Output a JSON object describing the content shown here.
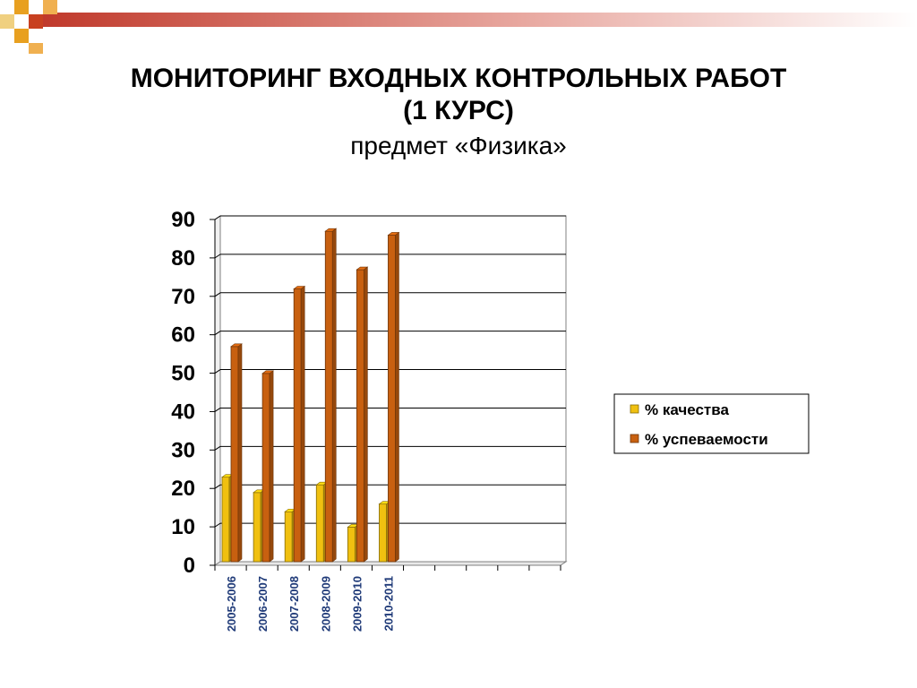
{
  "title": {
    "line1": "МОНИТОРИНГ ВХОДНЫХ КОНТРОЛЬНЫХ РАБОТ",
    "line2": "(1 КУРС)",
    "subtitle": "предмет «Физика»"
  },
  "colors": {
    "header_gradient_start": "#c0392b",
    "header_square_orange": "#e8a020",
    "header_square_red": "#c84020",
    "series_quality": "#f0c010",
    "series_success": "#c86010"
  },
  "chart_data": {
    "type": "bar",
    "categories": [
      "2005-2006",
      "2006-2007",
      "2007-2008",
      "2008-2009",
      "2009-2010",
      "2010-2011"
    ],
    "series": [
      {
        "name": "% качества",
        "values": [
          22,
          18,
          13,
          20,
          9,
          15
        ]
      },
      {
        "name": "% успеваемости",
        "values": [
          56,
          49,
          71,
          86,
          76,
          85
        ]
      }
    ],
    "ylim": [
      0,
      90
    ],
    "yticks": [
      0,
      10,
      20,
      30,
      40,
      50,
      60,
      70,
      80,
      90
    ],
    "grid": true,
    "legend_position": "right"
  }
}
